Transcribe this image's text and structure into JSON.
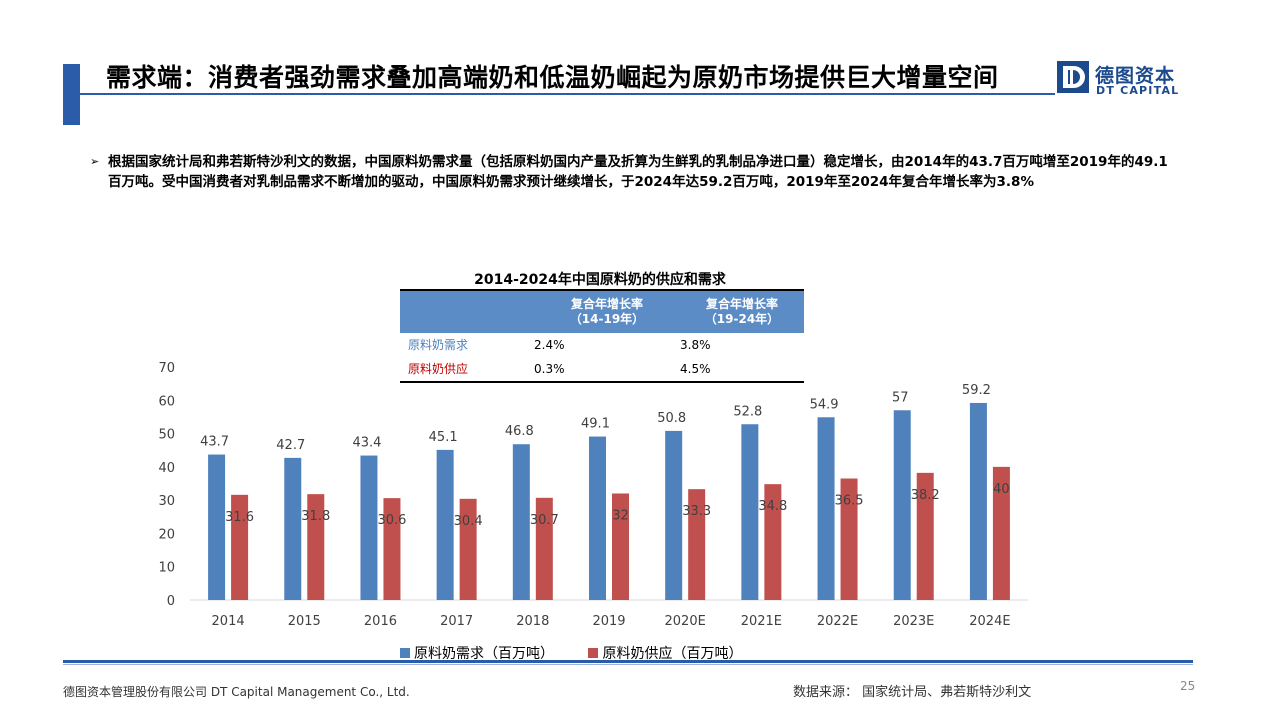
{
  "slide": {
    "title": "需求端：消费者强劲需求叠加高端奶和低温奶崛起为原奶市场提供巨大增量空间",
    "logo_cn": "德图资本",
    "logo_en": "DT CAPITAL",
    "bullet": "根据国家统计局和弗若斯特沙利文的数据，中国原料奶需求量（包括原料奶国内产量及折算为生鲜乳的乳制品净进口量）稳定增长，由2014年的43.7百万吨增至2019年的49.1百万吨。受中国消费者对乳制品需求不断增加的驱动，中国原料奶需求预计继续增长，于2024年达59.2百万吨，2019年至2024年复合年增长率为3.8%",
    "footer_company": "德图资本管理股份有限公司  DT Capital Management  Co., Ltd.",
    "footer_source": "数据来源：  国家统计局、弗若斯特沙利文",
    "page_number": "25"
  },
  "table": {
    "col1_line1": "复合年增长率",
    "col1_line2": "（14-19年）",
    "col2_line1": "复合年增长率",
    "col2_line2": "（19-24年）",
    "rows": [
      {
        "label": "原料奶需求",
        "v1": "2.4%",
        "v2": "3.8%",
        "color": "#4f81bd"
      },
      {
        "label": "原料奶供应",
        "v1": "0.3%",
        "v2": "4.5%",
        "color": "#c00000"
      }
    ]
  },
  "chart_data": {
    "type": "bar",
    "title": "2014-2024年中国原料奶的供应和需求",
    "categories": [
      "2014",
      "2015",
      "2016",
      "2017",
      "2018",
      "2019",
      "2020E",
      "2021E",
      "2022E",
      "2023E",
      "2024E"
    ],
    "series": [
      {
        "name": "原料奶需求（百万吨）",
        "color": "#4f81bd",
        "values": [
          43.7,
          42.7,
          43.4,
          45.1,
          46.8,
          49.1,
          50.8,
          52.8,
          54.9,
          57,
          59.2
        ]
      },
      {
        "name": "原料奶供应（百万吨）",
        "color": "#c0504d",
        "values": [
          31.6,
          31.8,
          30.6,
          30.4,
          30.7,
          32,
          33.3,
          34.8,
          36.5,
          38.2,
          40
        ]
      }
    ],
    "ylim": [
      0,
      70
    ],
    "yticks": [
      0,
      10,
      20,
      30,
      40,
      50,
      60,
      70
    ],
    "grid": false,
    "legend": "bottom"
  }
}
